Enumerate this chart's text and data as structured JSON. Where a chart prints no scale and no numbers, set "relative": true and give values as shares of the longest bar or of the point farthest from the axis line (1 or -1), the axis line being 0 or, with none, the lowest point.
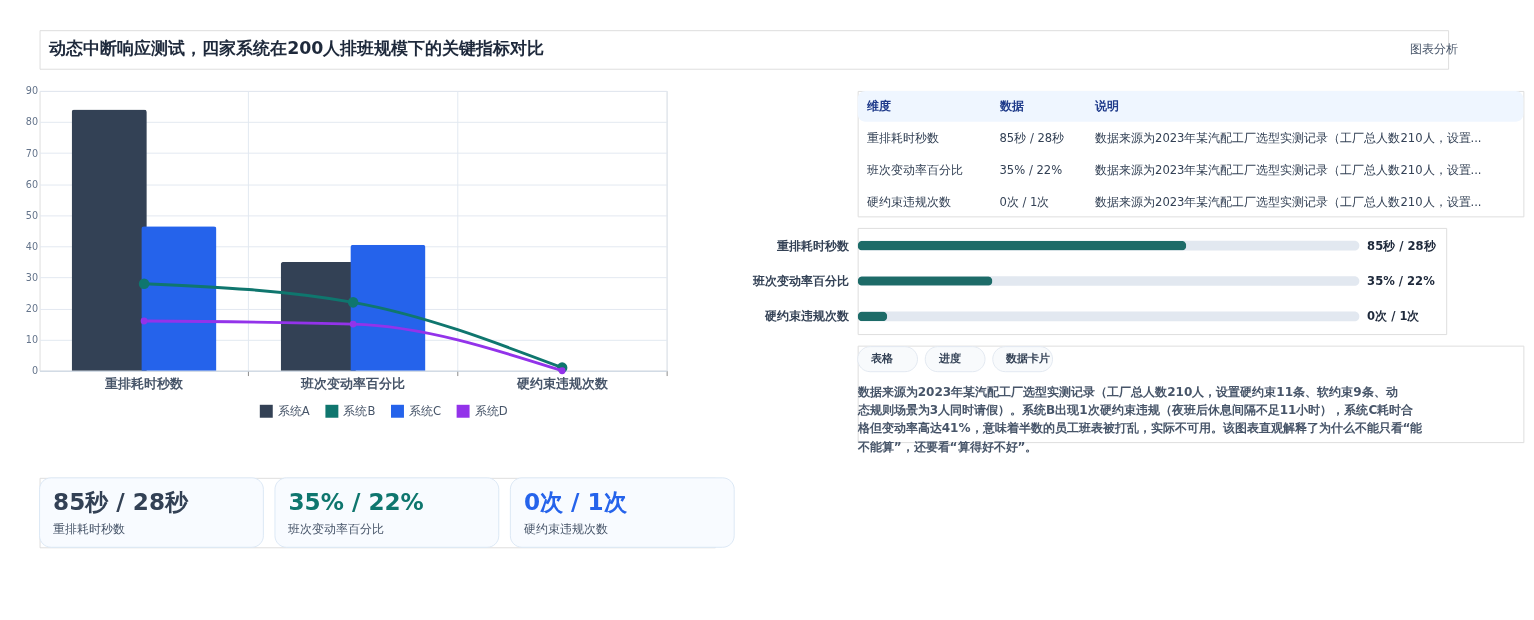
{
  "chart_data": [
    {
      "type": "other",
      "title": "动态中断响应测试，四家系统在200人排班规模下的关键指标对比",
      "annotations": [
        "图表分析"
      ]
    },
    {
      "type": "bar",
      "categories": [
        "重排耗时秒数",
        "班次变动率百分比",
        "硬约束违规次数"
      ],
      "series": [
        {
          "name": "系统A",
          "type": "bar",
          "color": "#334155",
          "values": [
            84,
            35,
            null
          ]
        },
        {
          "name": "系统B",
          "type": "line",
          "color": "#0f766e",
          "values": [
            28,
            22,
            1
          ]
        },
        {
          "name": "系统C",
          "type": "bar",
          "color": "#2563eb",
          "values": [
            46.5,
            40.5,
            null
          ]
        },
        {
          "name": "系统D",
          "type": "line",
          "color": "#9333ea",
          "values": [
            16,
            15,
            0
          ]
        }
      ],
      "ylim": [
        0,
        90
      ],
      "yticks": [
        0,
        10,
        20,
        30,
        40,
        50,
        60,
        70,
        80,
        90
      ],
      "grid": true,
      "legend": "bottom",
      "marker": "circle"
    },
    {
      "type": "other",
      "annotations": [
        "维度",
        "数据",
        "说明",
        "重排耗时秒数",
        "85秒 / 28秒",
        "数据来源为2023年某汽配工厂选型实测记录（工厂总人数210人，设置...",
        "班次变动率百分比",
        "35% / 22%",
        "数据来源为2023年某汽配工厂选型实测记录（工厂总人数210人，设置...",
        "硬约束违规次数",
        "0次 / 1次",
        "数据来源为2023年某汽配工厂选型实测记录（工厂总人数210人，设置..."
      ]
    },
    {
      "type": "bar",
      "orientation": "horizontal",
      "categories": [
        "重排耗时秒数",
        "班次变动率百分比",
        "硬约束违规次数"
      ],
      "relative": true,
      "values": [
        1,
        0.41,
        0.09
      ],
      "color": "#1d6b68",
      "annotations": [
        "85秒 / 28秒",
        "35% / 22%",
        "0次 / 1次"
      ]
    },
    {
      "type": "other",
      "annotations": [
        "85秒 / 28秒",
        "重排耗时秒数",
        "35% / 22%",
        "班次变动率百分比",
        "0次 / 1次",
        "硬约束违规次数"
      ]
    },
    {
      "type": "other",
      "annotations": [
        "表格",
        "进度",
        "数据卡片",
        "数据来源为2023年某汽配工厂选型实测记录（工厂总人数210人，设置硬约束11条、软约束9条、动态规则场景为3人同时请假）。系统B出现1次硬约束违规（夜班后休息间隔不足11小时），系统C耗时合格但变动率高达41%，意味着半数的员工班表被打乱，实际不可用。该图表直观解释了为什么不能只看“能不能算”，还要看“算得好不好”。"
      ]
    }
  ]
}
